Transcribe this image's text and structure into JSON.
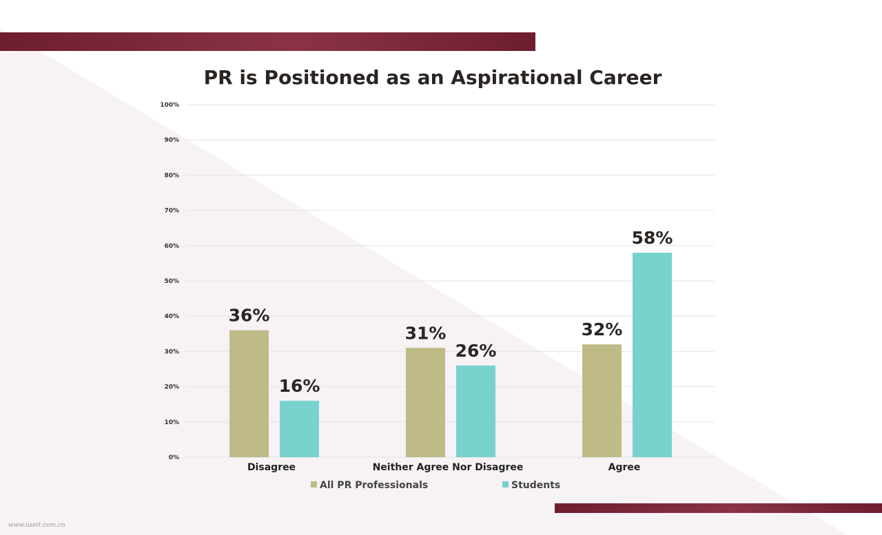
{
  "chart_data": {
    "type": "bar",
    "title": "PR is Positioned as an Aspirational Career",
    "categories": [
      "Disagree",
      "Neither Agree Nor Disagree",
      "Agree"
    ],
    "series": [
      {
        "name": "All PR Professionals",
        "values": [
          36,
          31,
          32
        ],
        "labels": [
          "36%",
          "31%",
          "32%"
        ],
        "color": "#bfbb87"
      },
      {
        "name": "Students",
        "values": [
          16,
          26,
          58
        ],
        "labels": [
          "16%",
          "26%",
          "58%"
        ],
        "color": "#78d2cd"
      }
    ],
    "ylim": [
      0,
      100
    ],
    "y_ticks": [
      0,
      10,
      20,
      30,
      40,
      50,
      60,
      70,
      80,
      90,
      100
    ],
    "y_tick_labels": [
      "0%",
      "10%",
      "20%",
      "30%",
      "40%",
      "50%",
      "60%",
      "70%",
      "80%",
      "90%",
      "100%"
    ],
    "xlabel": "",
    "ylabel": "",
    "grid": true,
    "legend_position": "bottom"
  },
  "watermark": "www.useit.com.cn",
  "colors": {
    "band": "#7a2438",
    "background_tint": "#f7f2f4"
  }
}
